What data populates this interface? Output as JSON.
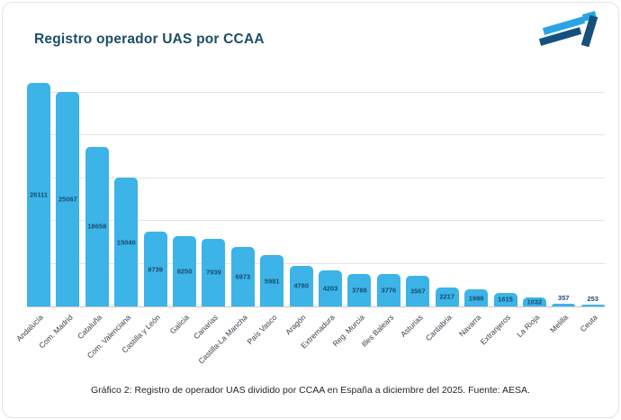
{
  "header": {
    "title": "Registro operador UAS por CCAA"
  },
  "logo": {
    "name": "brand-mark",
    "light_color": "#2aa5e1",
    "dark_color": "#15517e"
  },
  "caption": "Gráfico 2: Registro de operador UAS dividido por CCAA en España a diciembre del 2025. Fuente: AESA.",
  "chart_data": {
    "type": "bar",
    "title": "Registro operador UAS por CCAA",
    "categories": [
      "Andalucía",
      "Com. Madrid",
      "Cataluña",
      "Com. Valenciana",
      "Castilla y León",
      "Galicia",
      "Canarias",
      "Castilla-La Mancha",
      "País Vasco",
      "Aragón",
      "Extremadura",
      "Reg. Murcia",
      "Illes Balears",
      "Asturias",
      "Cantabria",
      "Navarra",
      "Extranjeros",
      "La Rioja",
      "Melilla",
      "Ceuta"
    ],
    "values": [
      26111,
      25067,
      18658,
      15040,
      8739,
      8250,
      7939,
      6973,
      5981,
      4780,
      4203,
      3788,
      3776,
      3567,
      2217,
      1986,
      1615,
      1032,
      357,
      253
    ],
    "xlabel": "",
    "ylabel": "",
    "ylim": [
      0,
      26650
    ],
    "grid": true,
    "grid_step": 5000,
    "legend": false,
    "bar_color": "#3cb4e7",
    "value_label_color": "#1a4a6e"
  }
}
